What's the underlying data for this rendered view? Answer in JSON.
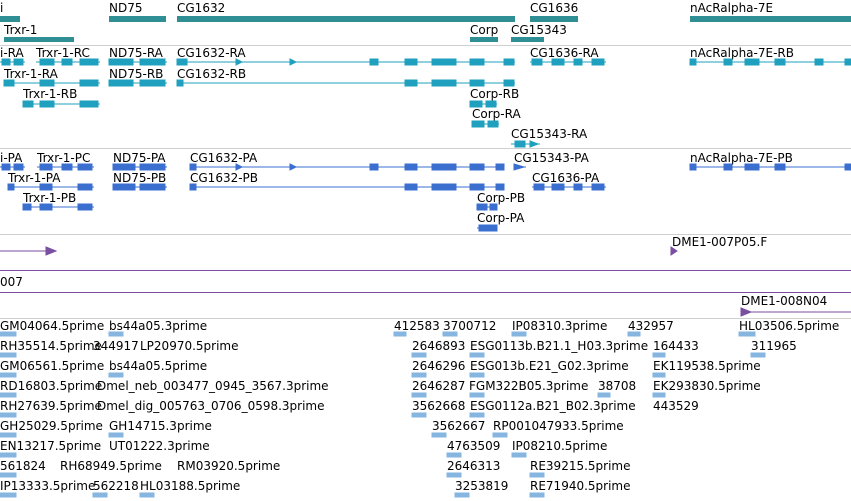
{
  "colors": {
    "gene": "#2f8f94",
    "rna": "#1fa0bf",
    "protein": "#3a6fd0",
    "clone": "#7a4ea0",
    "est": "#86b6df",
    "separator": "#cfcfcf"
  },
  "genes": {
    "labels": [
      "i",
      "ND75",
      "CG1632",
      "CG1636",
      "nAcRalpha-7E",
      "Trxr-1",
      "Corp",
      "CG15343"
    ]
  },
  "transcripts": {
    "labels": [
      "i-RA",
      "Trxr-1-RC",
      "ND75-RA",
      "CG1632-RA",
      "CG1636-RA",
      "nAcRalpha-7E-RB",
      "Trxr-1-RA",
      "ND75-RB",
      "CG1632-RB",
      "Trxr-1-RB",
      "Corp-RB",
      "Corp-RA",
      "CG15343-RA"
    ]
  },
  "proteins": {
    "labels": [
      "i-PA",
      "Trxr-1-PC",
      "ND75-PA",
      "CG1632-PA",
      "CG15343-PA",
      "nAcRalpha-7E-PB",
      "Trxr-1-PA",
      "ND75-PB",
      "CG1632-PB",
      "CG1636-PA",
      "Trxr-1-PB",
      "Corp-PB",
      "Corp-PA"
    ]
  },
  "clones": {
    "labels": [
      "DME1-007P05.F",
      "007",
      "DME1-008N04"
    ]
  },
  "ests": {
    "labels": [
      "GM04064.5prime",
      "bs44a05.3prime",
      "412583",
      "3700712",
      "IP08310.3prime",
      "432957",
      "HL03506.5prime",
      "RH35514.5prime",
      "344917",
      "LP20970.5prime",
      "2646893",
      "ESG0113b.B21.1_H03.3prime",
      "164433",
      "311965",
      "GM06561.5prime",
      "bs44a05.5prime",
      "2646296",
      "ESG013b.E21_G02.3prime",
      "EK119538.5prime",
      "RD16803.5prime",
      "Dmel_neb_003477_0945_3567.3prime",
      "2646287",
      "FGM322B05.3prime",
      "38708",
      "EK293830.5prime",
      "RH27639.5prime",
      "Dmel_dig_005763_0706_0598.3prime",
      "3562668",
      "ESG0112a.B21_B02.3prime",
      "443529",
      "GH25029.5prime",
      "GH14715.3prime",
      "3562667",
      "RP001047933.5prime",
      "EN13217.5prime",
      "UT01222.3prime",
      "4763509",
      "IP08210.5prime",
      "561824",
      "RH68949.5prime",
      "RM03920.5prime",
      "2646313",
      "RE39215.5prime",
      "IP13333.5prime",
      "562218",
      "HL03188.5prime",
      "3253819",
      "RE71940.5prime"
    ]
  }
}
